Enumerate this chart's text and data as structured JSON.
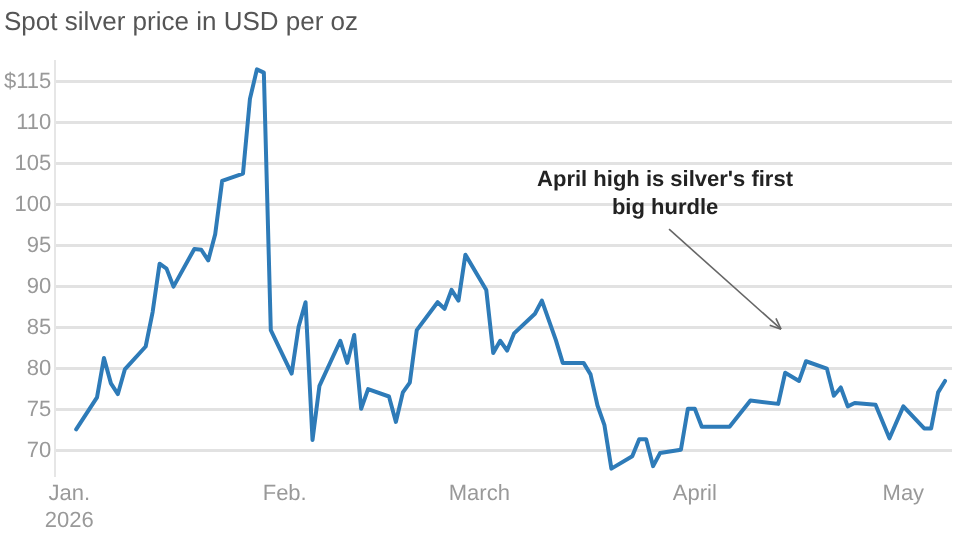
{
  "chart_data": {
    "type": "line",
    "title": "Spot silver price in USD per oz",
    "x": [
      "2026-01-02",
      "2026-01-05",
      "2026-01-06",
      "2026-01-07",
      "2026-01-08",
      "2026-01-09",
      "2026-01-12",
      "2026-01-13",
      "2026-01-14",
      "2026-01-15",
      "2026-01-16",
      "2026-01-19",
      "2026-01-20",
      "2026-01-21",
      "2026-01-22",
      "2026-01-23",
      "2026-01-26",
      "2026-01-27",
      "2026-01-28",
      "2026-01-29",
      "2026-01-30",
      "2026-02-02",
      "2026-02-03",
      "2026-02-04",
      "2026-02-05",
      "2026-02-06",
      "2026-02-09",
      "2026-02-10",
      "2026-02-11",
      "2026-02-12",
      "2026-02-13",
      "2026-02-16",
      "2026-02-17",
      "2026-02-18",
      "2026-02-19",
      "2026-02-20",
      "2026-02-23",
      "2026-02-24",
      "2026-02-25",
      "2026-02-26",
      "2026-02-27",
      "2026-03-02",
      "2026-03-03",
      "2026-03-04",
      "2026-03-05",
      "2026-03-06",
      "2026-03-09",
      "2026-03-10",
      "2026-03-12",
      "2026-03-13",
      "2026-03-16",
      "2026-03-17",
      "2026-03-18",
      "2026-03-19",
      "2026-03-20",
      "2026-03-23",
      "2026-03-24",
      "2026-03-25",
      "2026-03-26",
      "2026-03-27",
      "2026-03-30",
      "2026-03-31",
      "2026-04-01",
      "2026-04-02",
      "2026-04-06",
      "2026-04-09",
      "2026-04-13",
      "2026-04-14",
      "2026-04-16",
      "2026-04-17",
      "2026-04-20",
      "2026-04-21",
      "2026-04-22",
      "2026-04-23",
      "2026-04-24",
      "2026-04-27",
      "2026-04-29",
      "2026-05-01",
      "2026-05-04",
      "2026-05-05",
      "2026-05-06",
      "2026-05-07"
    ],
    "series": [
      {
        "color": "#2e7bb8",
        "values": [
          72.6,
          76.5,
          81.3,
          78.2,
          76.9,
          79.9,
          82.7,
          86.9,
          92.8,
          92.2,
          90.0,
          94.6,
          94.5,
          93.2,
          96.4,
          102.9,
          103.8,
          112.9,
          116.5,
          116.1,
          84.7,
          79.4,
          85.1,
          88.1,
          71.3,
          77.9,
          83.4,
          80.7,
          84.1,
          75.1,
          77.5,
          76.6,
          73.5,
          77.1,
          78.3,
          84.7,
          88.1,
          87.3,
          89.6,
          88.3,
          93.9,
          89.6,
          81.9,
          83.4,
          82.2,
          84.3,
          86.7,
          88.3,
          83.5,
          80.7,
          80.7,
          79.3,
          75.5,
          73.1,
          67.8,
          69.3,
          71.4,
          71.4,
          68.1,
          69.7,
          70.1,
          75.1,
          75.1,
          72.9,
          72.9,
          76.1,
          75.7,
          79.5,
          78.5,
          80.9,
          80.0,
          76.7,
          77.7,
          75.4,
          75.8,
          75.6,
          71.5,
          75.4,
          72.7,
          72.7,
          77.1,
          78.5
        ]
      }
    ],
    "xlim": [
      "2025-12-30",
      "2026-05-08"
    ],
    "xticks": [
      {
        "value": "2026-01-01",
        "label": "Jan.\n2026"
      },
      {
        "value": "2026-02-01",
        "label": "Feb."
      },
      {
        "value": "2026-03-01",
        "label": "March"
      },
      {
        "value": "2026-04-01",
        "label": "April"
      },
      {
        "value": "2026-05-01",
        "label": "May"
      }
    ],
    "ylim": [
      67,
      117.5
    ],
    "yticks": [
      70,
      75,
      80,
      85,
      90,
      95,
      100,
      105,
      110,
      {
        "value": 115,
        "label": "$115"
      }
    ],
    "grid": "y",
    "legend": false,
    "marker": "none",
    "line_style": "solid",
    "annotations": [
      "April high is silver's first big hurdle"
    ]
  }
}
